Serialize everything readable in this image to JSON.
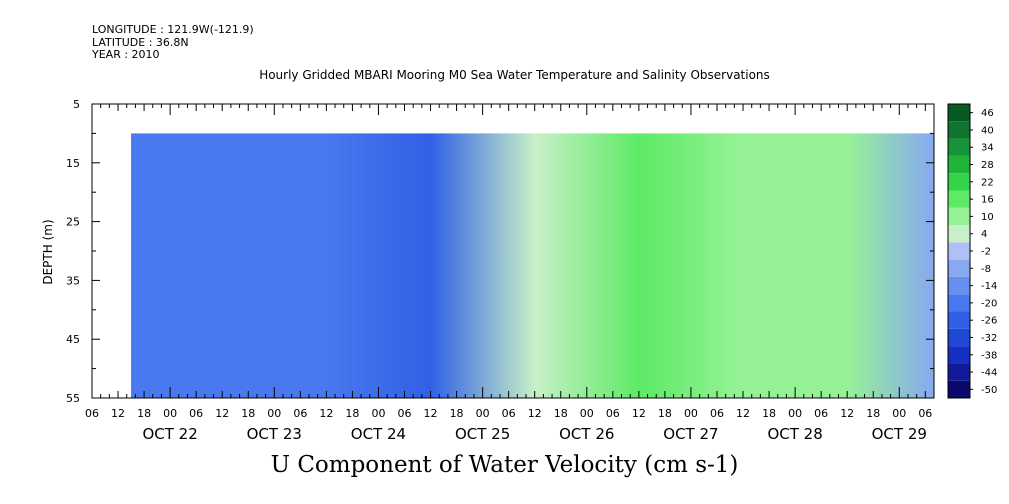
{
  "header": {
    "longitude": "LONGITUDE : 121.9W(-121.9)",
    "latitude": "LATITUDE : 36.8N",
    "year": "YEAR : 2010"
  },
  "title": "Hourly Gridded MBARI Mooring M0 Sea Water Temperature and Salinity Observations",
  "bottom_title": "U Component of Water Velocity (cm s-1)",
  "chart_data": {
    "type": "heatmap",
    "title": "Hourly Gridded MBARI Mooring M0 Sea Water Temperature and Salinity Observations",
    "xlabel": "",
    "ylabel": "DEPTH (m)",
    "colorbar_label": "U Component of Water Velocity (cm s-1)",
    "x_range": [
      "2010-10-21T06:00",
      "2010-10-29T08:00"
    ],
    "data_start": "2010-10-21T15:00",
    "y_range": [
      5,
      55
    ],
    "y_inverted": true,
    "data_depth_range": [
      10,
      55
    ],
    "y_ticks": [
      5,
      15,
      25,
      35,
      45,
      55
    ],
    "y_minor_ticks": [
      10,
      20,
      30,
      40,
      50
    ],
    "x_hour_labels": [
      "06",
      "12",
      "18",
      "00",
      "06",
      "12",
      "18",
      "00",
      "06",
      "12",
      "18",
      "00",
      "06",
      "12",
      "18",
      "00",
      "06",
      "12",
      "18",
      "00",
      "06",
      "12",
      "18",
      "00",
      "06",
      "12",
      "18",
      "00",
      "06",
      "12",
      "18",
      "00",
      "06"
    ],
    "x_day_labels": [
      "OCT 22",
      "OCT 23",
      "OCT 24",
      "OCT 25",
      "OCT 26",
      "OCT 27",
      "OCT 28",
      "OCT 29"
    ],
    "colorbar_levels": [
      -50,
      -44,
      -38,
      -32,
      -26,
      -20,
      -14,
      -8,
      -2,
      4,
      10,
      16,
      22,
      28,
      34,
      40,
      46
    ],
    "colorbar_tick_labels": [
      "-50",
      "-44",
      "-38",
      "-32",
      "-26",
      "-20",
      "-14",
      "-8",
      "-2",
      "4",
      "10",
      "16",
      "22",
      "28",
      "34",
      "40",
      "46"
    ],
    "colorbar_colors": [
      "#0a0a6e",
      "#101a9a",
      "#1530c0",
      "#1f48d8",
      "#3060e6",
      "#4a78ee",
      "#6690f0",
      "#88a8f2",
      "#b0bff5",
      "#c8f0c8",
      "#96f296",
      "#5eea66",
      "#33d44a",
      "#22b43a",
      "#17943a",
      "#0f7430",
      "#075a24"
    ],
    "u_by_day": [
      {
        "day": "2010-10-21",
        "u": -15
      },
      {
        "day": "2010-10-22",
        "u": -20
      },
      {
        "day": "2010-10-23",
        "u": -18
      },
      {
        "day": "2010-10-24",
        "u": -22
      },
      {
        "day": "2010-10-25",
        "u": 8
      },
      {
        "day": "2010-10-26",
        "u": 18
      },
      {
        "day": "2010-10-27",
        "u": 12
      },
      {
        "day": "2010-10-28",
        "u": 14
      },
      {
        "day": "2010-10-29",
        "u": -6
      }
    ]
  }
}
